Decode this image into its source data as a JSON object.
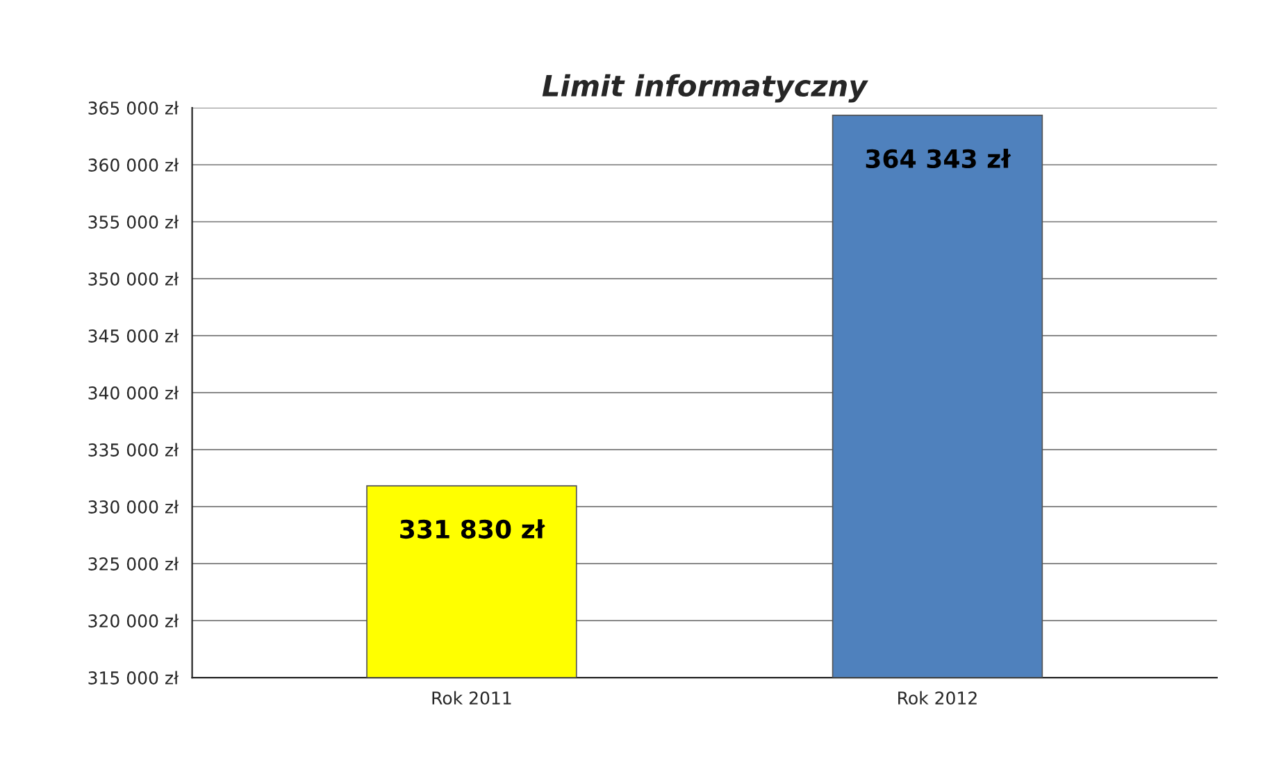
{
  "chart_data": {
    "type": "bar",
    "title": "Limit informatyczny",
    "categories": [
      "Rok 2011",
      "Rok 2012"
    ],
    "values": [
      331830,
      364343
    ],
    "colors": [
      "#ffff00",
      "#4f81bd"
    ],
    "value_labels": [
      "331 830 zł",
      "364 343 zł"
    ],
    "ylim": [
      315000,
      365000
    ],
    "yticks": [
      {
        "value": 315000,
        "label": "315 000 zł"
      },
      {
        "value": 320000,
        "label": "320 000 zł"
      },
      {
        "value": 325000,
        "label": "325 000 zł"
      },
      {
        "value": 330000,
        "label": "330 000 zł"
      },
      {
        "value": 335000,
        "label": "335 000 zł"
      },
      {
        "value": 340000,
        "label": "340 000 zł"
      },
      {
        "value": 345000,
        "label": "345 000 zł"
      },
      {
        "value": 350000,
        "label": "350 000 zł"
      },
      {
        "value": 355000,
        "label": "355 000 zł"
      },
      {
        "value": 360000,
        "label": "360 000 zł"
      },
      {
        "value": 365000,
        "label": "365 000 zł"
      }
    ],
    "grid": "y",
    "legend": false
  }
}
